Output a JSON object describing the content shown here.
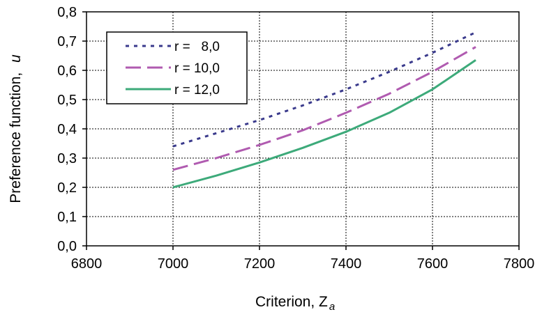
{
  "chart_data": {
    "type": "line",
    "xlabel": "Criterion, Z",
    "xlabel_sub": "a",
    "ylabel": "Preference function,",
    "ylabel_symbol": "u",
    "xlim": [
      6800,
      7800
    ],
    "ylim": [
      0.0,
      0.8
    ],
    "x_ticks": [
      "6800",
      "7000",
      "7200",
      "7400",
      "7600",
      "7800"
    ],
    "y_ticks": [
      "0,0",
      "0,1",
      "0,2",
      "0,3",
      "0,4",
      "0,5",
      "0,6",
      "0,7",
      "0,8"
    ],
    "grid": true,
    "legend_position": "top-left",
    "x": [
      7000,
      7100,
      7200,
      7300,
      7400,
      7500,
      7600,
      7700
    ],
    "series": [
      {
        "name": "r =   8,0",
        "color": "#3a3a8c",
        "dash": "dotted",
        "values": [
          0.34,
          0.385,
          0.43,
          0.48,
          0.535,
          0.595,
          0.66,
          0.73
        ]
      },
      {
        "name": "r = 10,0",
        "color": "#b05bb0",
        "dash": "dashed",
        "values": [
          0.26,
          0.3,
          0.345,
          0.395,
          0.455,
          0.52,
          0.595,
          0.68
        ]
      },
      {
        "name": "r = 12,0",
        "color": "#3daa7a",
        "dash": "solid",
        "values": [
          0.2,
          0.24,
          0.285,
          0.335,
          0.39,
          0.455,
          0.535,
          0.635
        ]
      }
    ]
  }
}
